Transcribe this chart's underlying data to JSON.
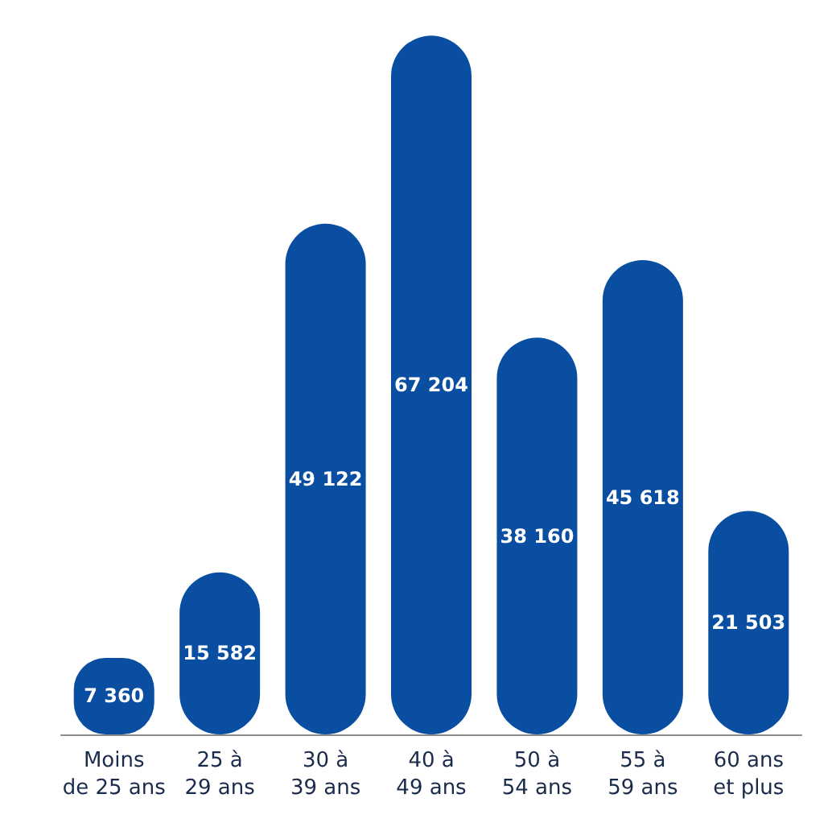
{
  "chart_data": {
    "type": "bar",
    "categories": [
      "Moins\nde 25 ans",
      "25 à\n29 ans",
      "30 à\n39 ans",
      "40 à\n49 ans",
      "50 à\n54 ans",
      "55 à\n59 ans",
      "60 ans\net plus"
    ],
    "values": [
      7360,
      15582,
      49122,
      67204,
      38160,
      45618,
      21503
    ],
    "value_labels": [
      "7 360",
      "15 582",
      "49 122",
      "67 204",
      "38 160",
      "45 618",
      "21 503"
    ],
    "color": "#0a4ea2"
  }
}
